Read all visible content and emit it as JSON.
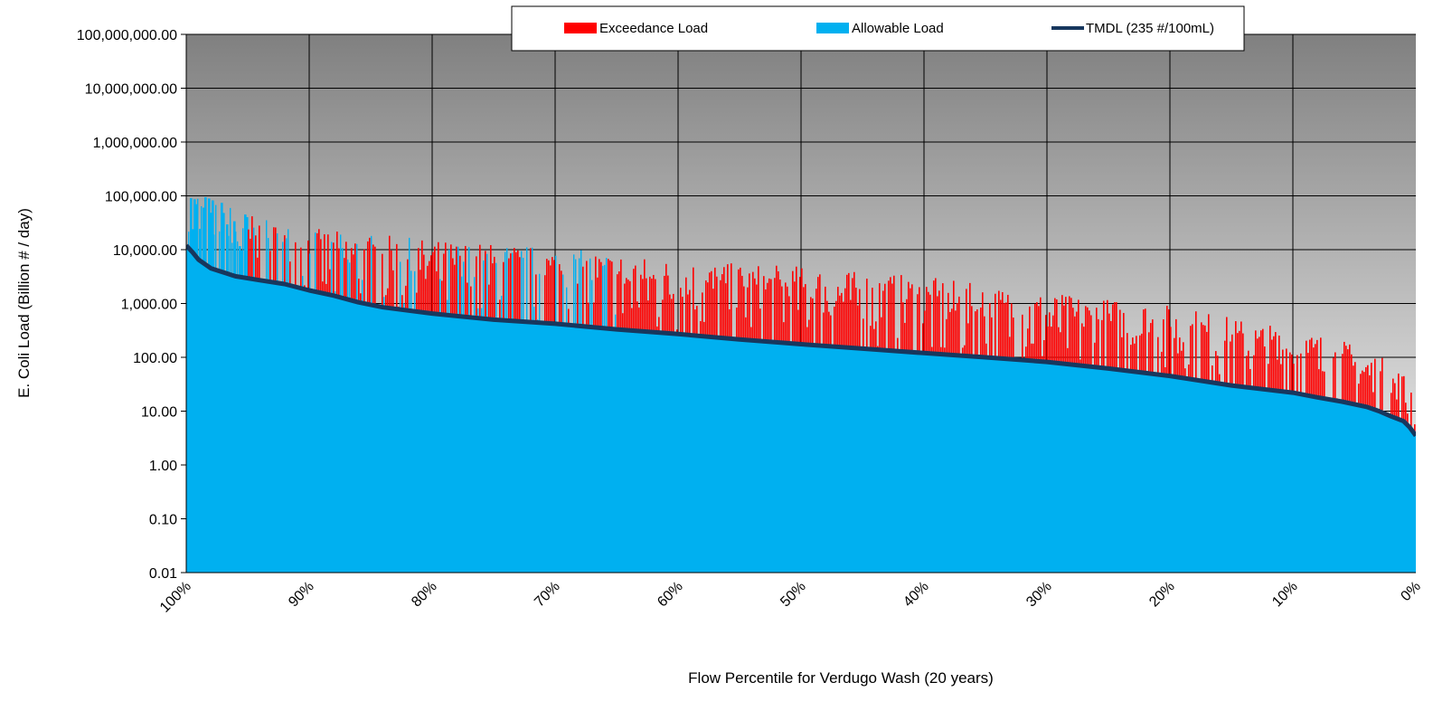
{
  "chart_data": {
    "type": "bar",
    "title": "",
    "xlabel": "Flow Percentile for Verdugo Wash (20 years)",
    "ylabel": "E. Coli Load (Billion # / day)",
    "yscale": "log",
    "ylim": [
      0.01,
      100000000
    ],
    "xlim": [
      100,
      0
    ],
    "y_ticks": [
      "0.01",
      "0.10",
      "1.00",
      "10.00",
      "100.00",
      "1,000.00",
      "10,000.00",
      "100,000.00",
      "1,000,000.00",
      "10,000,000.00",
      "100,000,000.00"
    ],
    "x_ticks": [
      "100%",
      "90%",
      "80%",
      "70%",
      "60%",
      "50%",
      "40%",
      "30%",
      "20%",
      "10%",
      "0%"
    ],
    "grid": true,
    "legend_position": "top-center",
    "series": [
      {
        "name": "Exceedance Load",
        "color": "#ff0000"
      },
      {
        "name": "Allowable Load",
        "color": "#00b0f0"
      },
      {
        "name": "TMDL (235 #/100mL)",
        "color": "#17375e"
      }
    ],
    "tmdl_curve": {
      "x": [
        100,
        99.5,
        99,
        98,
        96,
        94,
        92,
        90,
        88,
        86,
        84,
        80,
        75,
        70,
        65,
        60,
        55,
        50,
        45,
        40,
        35,
        30,
        25,
        20,
        15,
        10,
        8,
        6,
        4,
        3,
        2,
        1,
        0.5,
        0
      ],
      "y": [
        12000,
        9000,
        6500,
        4500,
        3200,
        2700,
        2300,
        1750,
        1400,
        1050,
        850,
        650,
        500,
        420,
        330,
        270,
        215,
        175,
        145,
        120,
        100,
        82,
        62,
        45,
        30,
        22,
        18,
        15,
        12,
        10,
        8,
        6.5,
        5,
        3.5
      ]
    },
    "observed_envelope": {
      "x": [
        100,
        99,
        97,
        95,
        93,
        91,
        89,
        86,
        83,
        80,
        75,
        70,
        66,
        62,
        58,
        55,
        50,
        46,
        42,
        38,
        34,
        30,
        26,
        22,
        18,
        14,
        10,
        7,
        4,
        2,
        0
      ],
      "y": [
        170000,
        120000,
        80000,
        50000,
        32000,
        28000,
        24000,
        20000,
        18000,
        15000,
        13000,
        11000,
        9000,
        7000,
        6000,
        5500,
        5000,
        4000,
        3500,
        2800,
        2000,
        1600,
        1300,
        1100,
        800,
        500,
        350,
        250,
        150,
        80,
        40
      ]
    },
    "blue_spike_region": [
      64,
      100
    ]
  }
}
